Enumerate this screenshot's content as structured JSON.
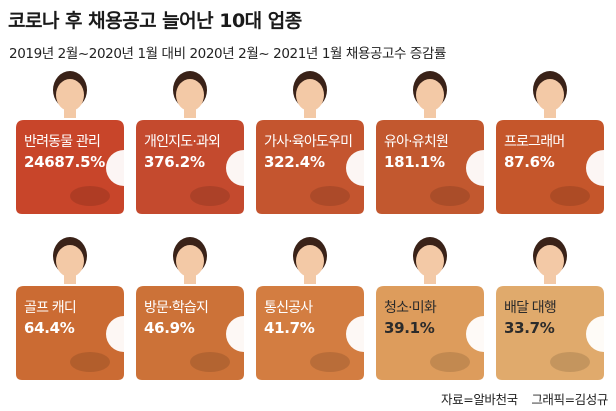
{
  "title": "코로나 후 채용공고 늘어난 10대 업종",
  "subtitle": "2019년 2월~2020년 1월 대비 2020년 2월~ 2021년 1월 채용공고수 증감률",
  "footer": {
    "source": "자료=알바천국",
    "graphic": "그래픽=김성규"
  },
  "chart_data": {
    "type": "table",
    "title": "코로나 후 채용공고 늘어난 10대 업종",
    "subtitle": "2019년 2월~2020년 1월 대비 2020년 2월~ 2021년 1월 채용공고수 증감률",
    "rows": [
      {
        "category": "반려동물 관리",
        "value": 24687.5,
        "label": "24687.5%",
        "color": "#c8452a"
      },
      {
        "category": "개인지도·과외",
        "value": 376.2,
        "label": "376.2%",
        "color": "#c44a2e"
      },
      {
        "category": "가사·육아도우미",
        "value": 322.4,
        "label": "322.4%",
        "color": "#c4552f"
      },
      {
        "category": "유아·유치원",
        "value": 181.1,
        "label": "181.1%",
        "color": "#c2582f"
      },
      {
        "category": "프로그래머",
        "value": 87.6,
        "label": "87.6%",
        "color": "#c5562b"
      },
      {
        "category": "골프 캐디",
        "value": 64.4,
        "label": "64.4%",
        "color": "#cb6b33"
      },
      {
        "category": "방문·학습지",
        "value": 46.9,
        "label": "46.9%",
        "color": "#cc7238"
      },
      {
        "category": "통신공사",
        "value": 41.7,
        "label": "41.7%",
        "color": "#d37d41"
      },
      {
        "category": "청소·미화",
        "value": 39.1,
        "label": "39.1%",
        "color": "#dd9c5c"
      },
      {
        "category": "배달 대행",
        "value": 33.7,
        "label": "33.7%",
        "color": "#e0aa6c"
      }
    ]
  }
}
